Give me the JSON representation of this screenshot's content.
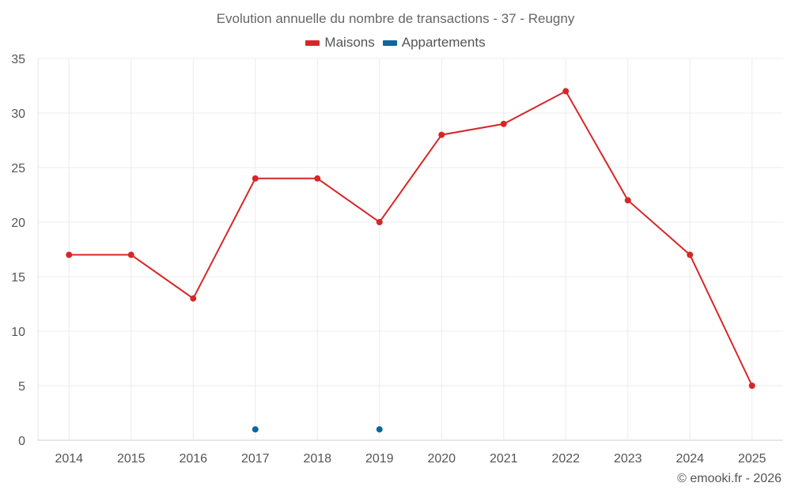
{
  "chart_data": {
    "type": "line",
    "title": "Evolution annuelle du nombre de transactions - 37 - Reugny",
    "categories": [
      "2014",
      "2015",
      "2016",
      "2017",
      "2018",
      "2019",
      "2020",
      "2021",
      "2022",
      "2023",
      "2024",
      "2025"
    ],
    "series": [
      {
        "name": "Maisons",
        "color": "#d62728",
        "values": [
          17,
          17,
          13,
          24,
          24,
          20,
          28,
          29,
          32,
          22,
          17,
          5
        ]
      },
      {
        "name": "Appartements",
        "color": "#08689c",
        "values": [
          null,
          null,
          null,
          1,
          null,
          1,
          null,
          null,
          null,
          null,
          null,
          null
        ]
      }
    ],
    "yticks": [
      0,
      5,
      10,
      15,
      20,
      25,
      30,
      35
    ],
    "ylim": [
      0,
      35
    ],
    "xlabel": "",
    "ylabel": "",
    "grid": true,
    "legend_position": "top-center"
  },
  "credit": "© emooki.fr - 2026"
}
